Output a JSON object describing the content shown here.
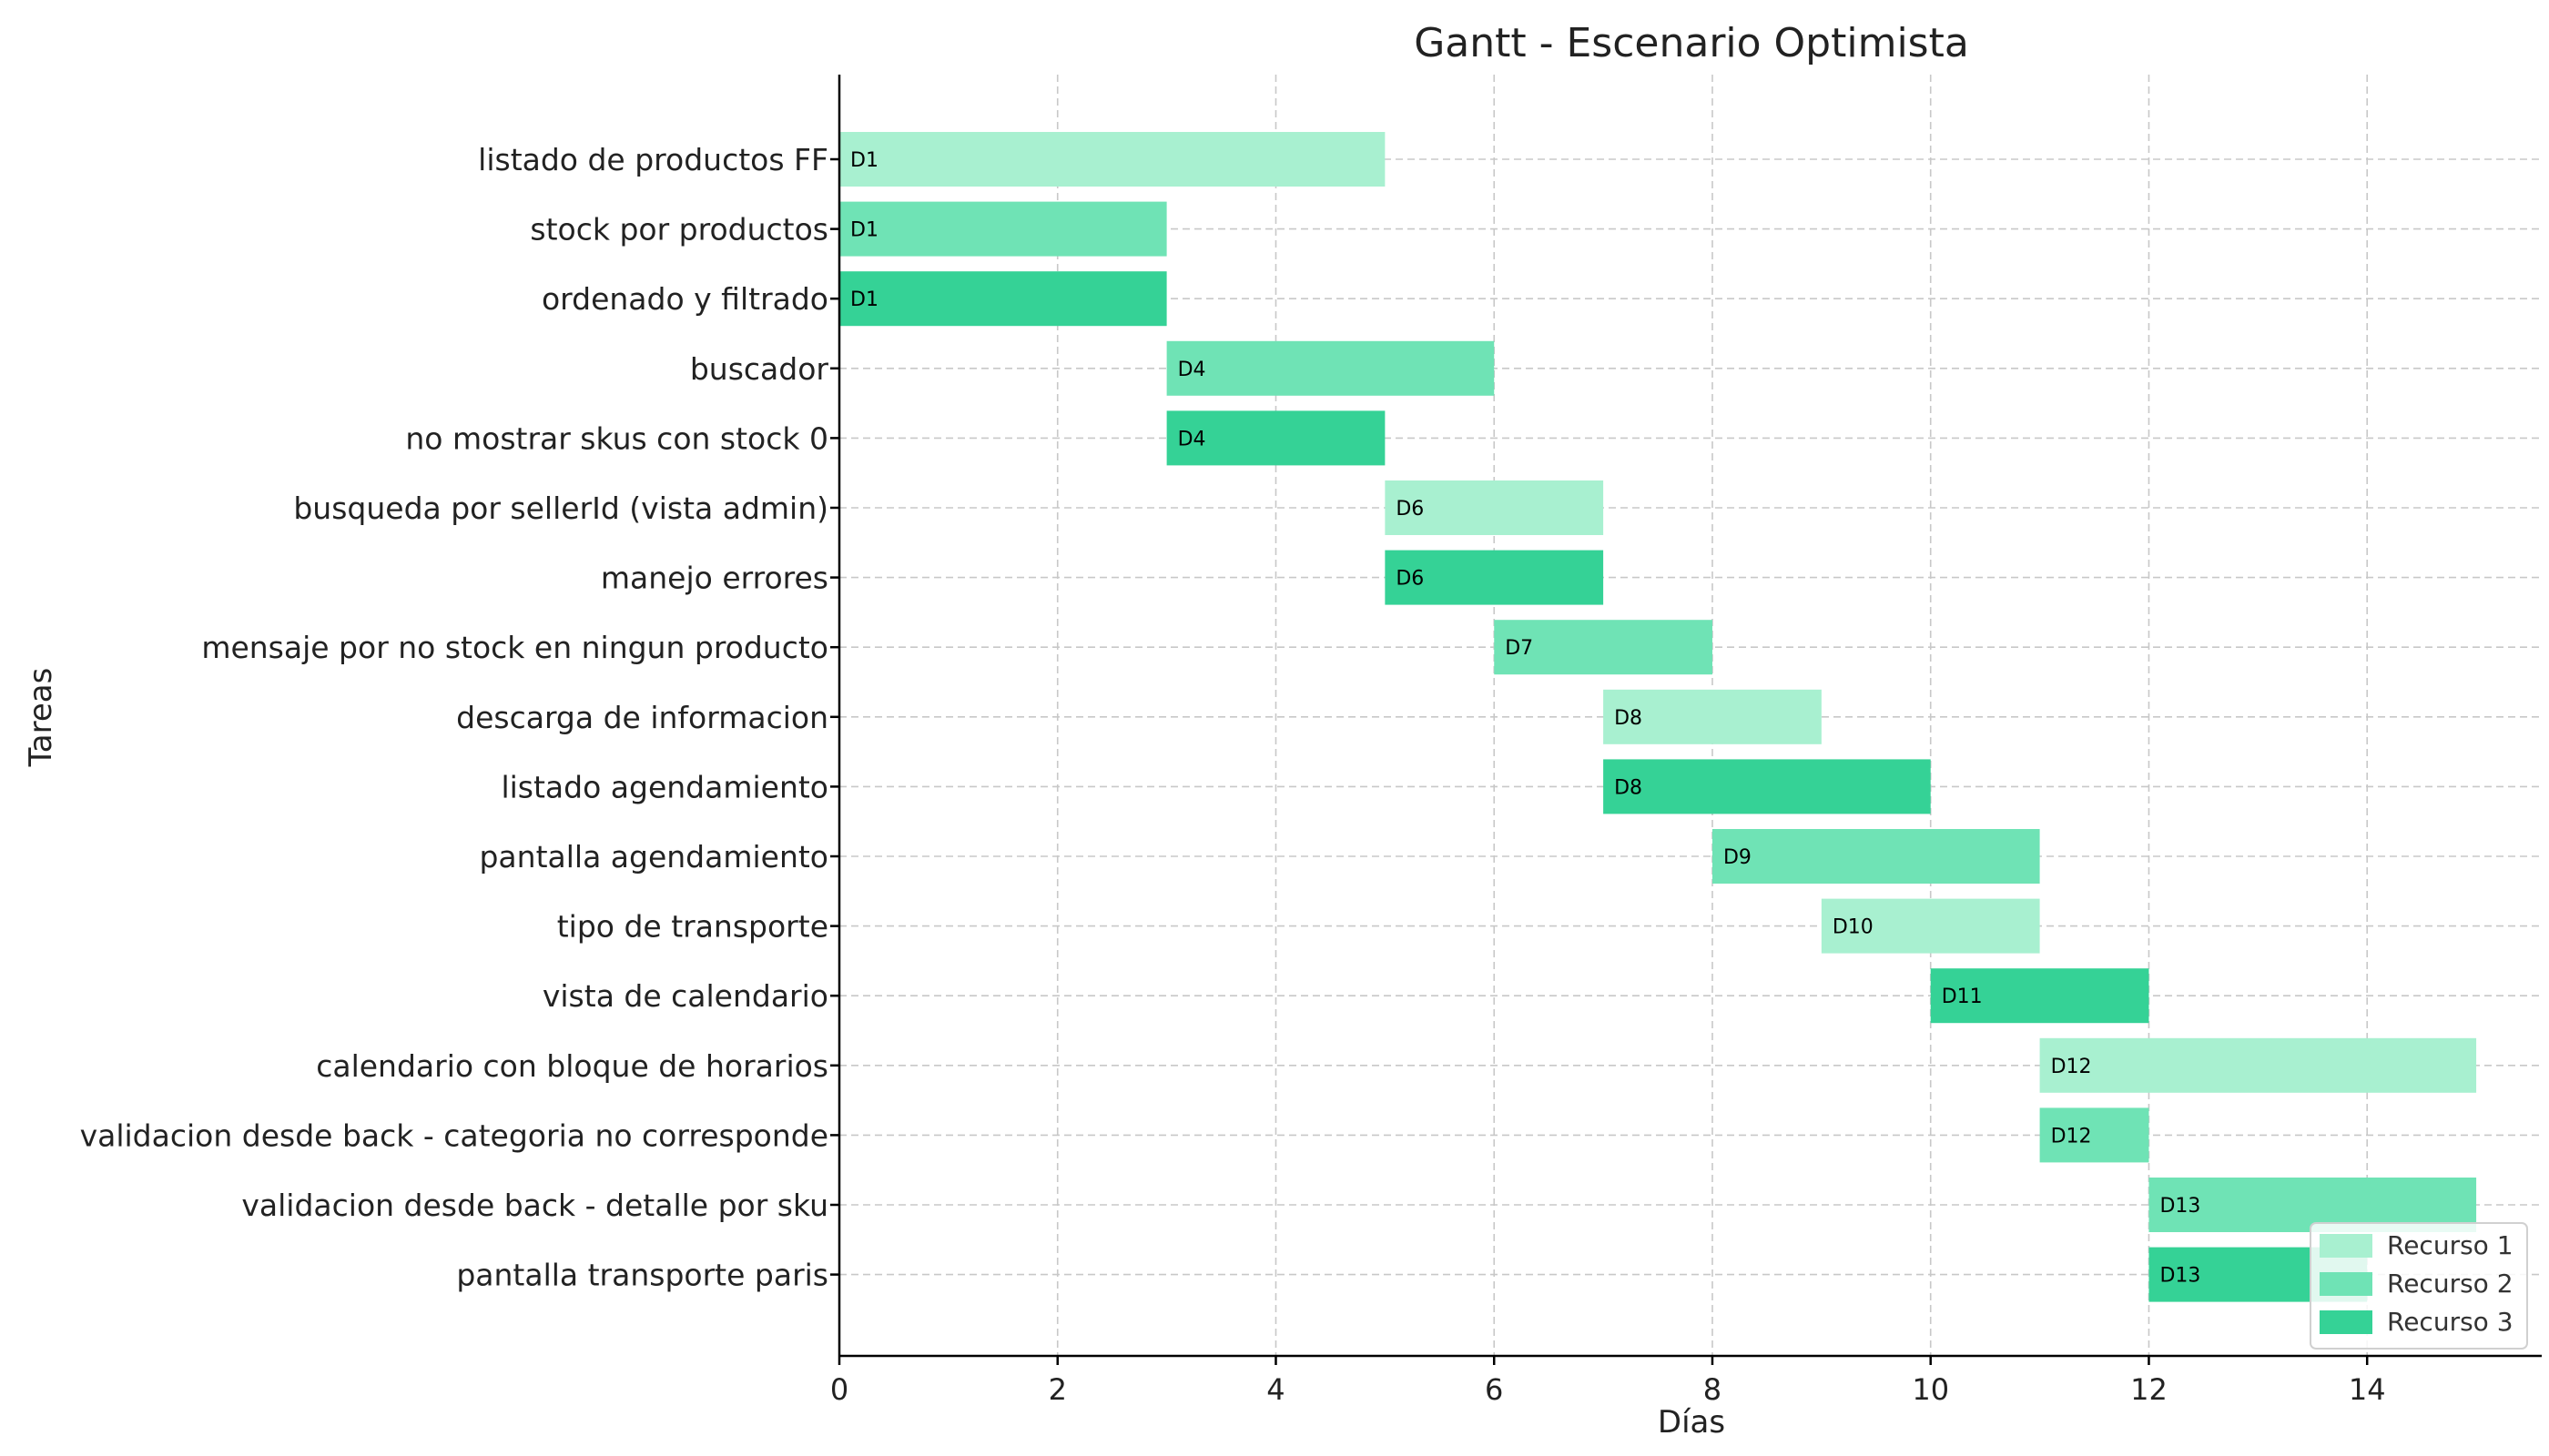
{
  "chart_data": {
    "type": "gantt",
    "title": "Gantt - Escenario Optimista",
    "xlabel": "Días",
    "ylabel": "Tareas",
    "xlim": [
      0,
      15.6
    ],
    "xticks": [
      0,
      2,
      4,
      6,
      8,
      10,
      12,
      14
    ],
    "grid": true,
    "legend_position": "bottom-right",
    "resources": [
      {
        "name": "Recurso 1",
        "color": "#a8f0d0"
      },
      {
        "name": "Recurso 2",
        "color": "#6fe3b5"
      },
      {
        "name": "Recurso 3",
        "color": "#35d296"
      }
    ],
    "tasks": [
      {
        "name": "listado de productos FF",
        "start": 0,
        "end": 5,
        "resource": 0,
        "label": "D1"
      },
      {
        "name": "stock por productos",
        "start": 0,
        "end": 3,
        "resource": 1,
        "label": "D1"
      },
      {
        "name": "ordenado y filtrado",
        "start": 0,
        "end": 3,
        "resource": 2,
        "label": "D1"
      },
      {
        "name": "buscador",
        "start": 3,
        "end": 6,
        "resource": 1,
        "label": "D4"
      },
      {
        "name": "no mostrar skus con stock 0",
        "start": 3,
        "end": 5,
        "resource": 2,
        "label": "D4"
      },
      {
        "name": "busqueda por sellerId (vista admin)",
        "start": 5,
        "end": 7,
        "resource": 0,
        "label": "D6"
      },
      {
        "name": "manejo errores",
        "start": 5,
        "end": 7,
        "resource": 2,
        "label": "D6"
      },
      {
        "name": "mensaje por no stock en ningun producto",
        "start": 6,
        "end": 8,
        "resource": 1,
        "label": "D7"
      },
      {
        "name": "descarga de informacion",
        "start": 7,
        "end": 9,
        "resource": 0,
        "label": "D8"
      },
      {
        "name": "listado agendamiento",
        "start": 7,
        "end": 10,
        "resource": 2,
        "label": "D8"
      },
      {
        "name": "pantalla agendamiento",
        "start": 8,
        "end": 11,
        "resource": 1,
        "label": "D9"
      },
      {
        "name": "tipo de transporte",
        "start": 9,
        "end": 11,
        "resource": 0,
        "label": "D10"
      },
      {
        "name": "vista de calendario",
        "start": 10,
        "end": 12,
        "resource": 2,
        "label": "D11"
      },
      {
        "name": "calendario con bloque de horarios",
        "start": 11,
        "end": 15,
        "resource": 0,
        "label": "D12"
      },
      {
        "name": "validacion desde back - categoria no corresponde",
        "start": 11,
        "end": 12,
        "resource": 1,
        "label": "D12"
      },
      {
        "name": "validacion desde back - detalle por sku",
        "start": 12,
        "end": 15,
        "resource": 1,
        "label": "D13"
      },
      {
        "name": "pantalla transporte paris",
        "start": 12,
        "end": 14,
        "resource": 2,
        "label": "D13"
      }
    ]
  }
}
